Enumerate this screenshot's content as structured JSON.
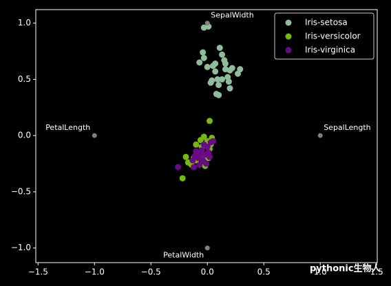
{
  "chart_data": {
    "type": "scatter",
    "xlim": [
      -1.52,
      1.505
    ],
    "ylim": [
      -1.13,
      1.12
    ],
    "xticks": [
      {
        "value": -1.5,
        "label": "−1.5"
      },
      {
        "value": -1.0,
        "label": "−1.0"
      },
      {
        "value": -0.5,
        "label": "−0.5"
      },
      {
        "value": 0,
        "label": "0.0"
      },
      0.5,
      {
        "value": 1.0,
        "label": "1.0"
      },
      1.5
    ],
    "yticks": [
      {
        "value": -1.0,
        "label": "−1.0"
      },
      {
        "value": -0.5,
        "label": "−0.5"
      },
      {
        "value": 0,
        "label": "0.0"
      },
      0.5,
      {
        "value": 1.0,
        "label": "1.0"
      }
    ],
    "legend": "upper right",
    "anchors": [
      {
        "label": "SepalLength",
        "x": 1.0,
        "y": 0.0
      },
      {
        "label": "SepalWidth",
        "x": 0.0,
        "y": 1.0
      },
      {
        "label": "PetalLength",
        "x": -1.0,
        "y": 0.0
      },
      {
        "label": "PetalWidth",
        "x": 0.0,
        "y": -1.0
      }
    ],
    "anchor_color": "#808080",
    "series": [
      {
        "name": "Iris-setosa",
        "color": "#8fbc9a",
        "x": [
          -0.03,
          0.01,
          0.11,
          -0.04,
          -0.03,
          -0.07,
          0.0,
          0.05,
          0.13,
          0.15,
          0.07,
          0.16,
          0.2,
          0.29,
          0.27,
          0.09,
          0.04,
          0.13,
          0.18,
          0.1,
          0.19,
          0.2,
          0.08,
          0.1,
          0.03,
          0.07,
          0.16,
          0.22
        ],
        "values": [
          0.96,
          0.97,
          0.78,
          0.74,
          0.69,
          0.65,
          0.61,
          0.62,
          0.72,
          0.67,
          0.57,
          0.59,
          0.58,
          0.59,
          0.55,
          0.5,
          0.49,
          0.5,
          0.52,
          0.45,
          0.48,
          0.42,
          0.37,
          0.36,
          0.47,
          0.64,
          0.64,
          0.6
        ]
      },
      {
        "name": "Iris-versicolor",
        "color": "#77b90f",
        "x": [
          -0.22,
          -0.19,
          -0.17,
          0.02,
          0.04,
          -0.1,
          -0.05,
          0.0,
          -0.03,
          0.05,
          -0.08,
          -0.12,
          -0.02,
          -0.04,
          0.02,
          -0.14,
          -0.06,
          0.03,
          -0.1,
          0.01
        ],
        "values": [
          -0.38,
          -0.19,
          -0.24,
          0.13,
          -0.02,
          -0.08,
          -0.1,
          -0.05,
          -0.01,
          -0.05,
          -0.15,
          -0.2,
          -0.27,
          -0.2,
          -0.12,
          -0.26,
          -0.04,
          -0.08,
          -0.22,
          -0.2
        ]
      },
      {
        "name": "Iris-virginica",
        "color": "#6a0a88",
        "x": [
          -0.26,
          -0.12,
          -0.07,
          -0.1,
          -0.05,
          -0.02,
          0.0,
          0.03,
          0.05,
          -0.08,
          -0.04,
          -0.01,
          -0.13,
          -0.06,
          0.01,
          -0.03,
          -0.11,
          0.02
        ],
        "values": [
          -0.28,
          -0.28,
          -0.26,
          -0.14,
          -0.13,
          -0.17,
          -0.1,
          -0.06,
          -0.05,
          -0.2,
          -0.22,
          -0.25,
          -0.22,
          -0.17,
          -0.15,
          -0.08,
          -0.18,
          -0.19
        ]
      }
    ]
  },
  "watermark": "pythonic生物人"
}
